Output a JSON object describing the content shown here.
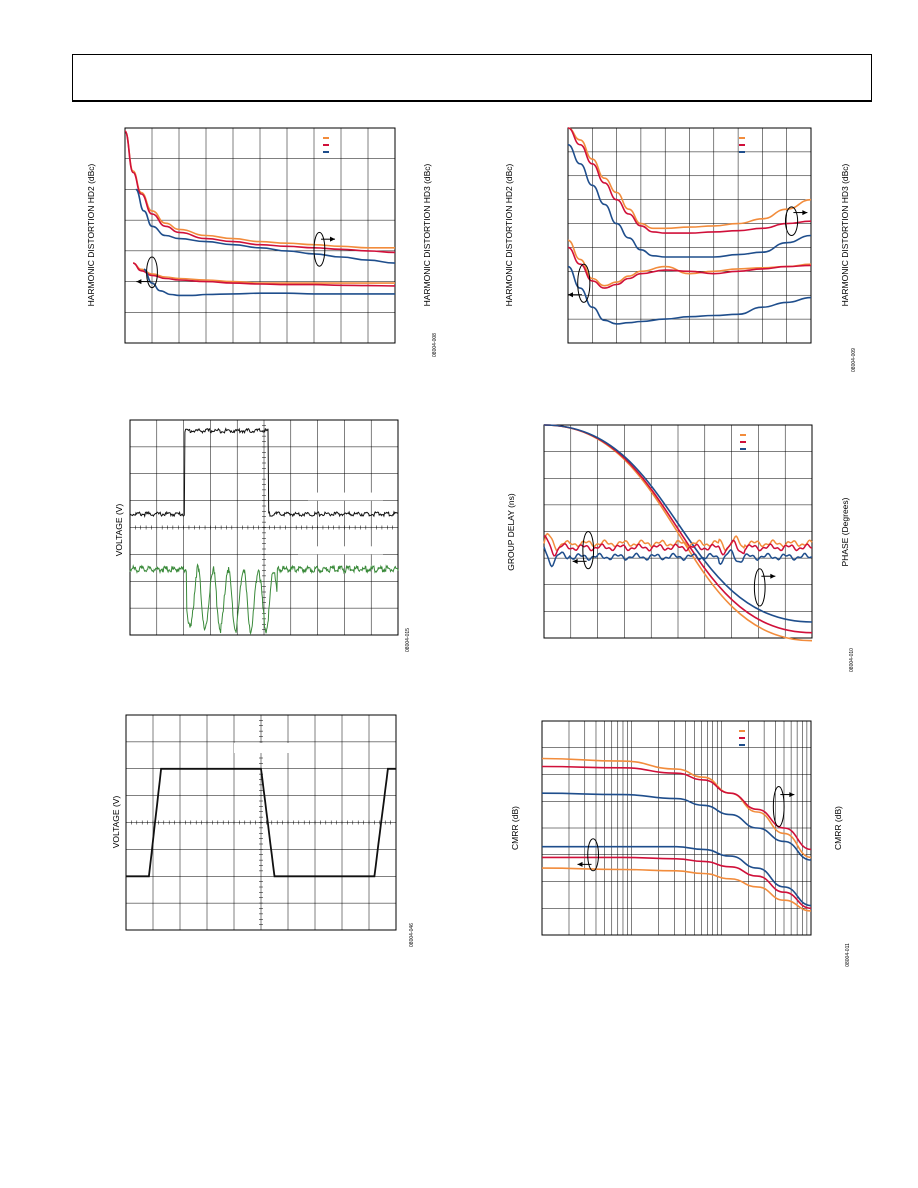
{
  "page": {
    "header_title": ""
  },
  "colors": {
    "orange": "#F28C3C",
    "red": "#D0103A",
    "blue": "#1F4E8C",
    "black": "#111111",
    "green": "#3A8A3A",
    "grid": "#000000"
  },
  "chart_data": [
    {
      "id": "c1",
      "type": "line",
      "ylabel_left": "HARMONIC DISTORTION HD2 (dBc)",
      "ylabel_right": "HARMONIC DISTORTION HD3 (dBc)",
      "fig_id": "08004-008",
      "grid": {
        "cols": 10,
        "rows": 7
      },
      "legend": [
        "",
        "",
        ""
      ],
      "series": [
        {
          "color": "orange",
          "x": [
            0,
            0.3,
            0.6,
            1,
            1.5,
            2,
            3,
            4,
            5,
            6,
            7,
            8,
            9,
            10
          ],
          "y": [
            6.9,
            5.6,
            4.9,
            4.3,
            3.9,
            3.7,
            3.5,
            3.4,
            3.3,
            3.25,
            3.2,
            3.15,
            3.1,
            3.1
          ]
        },
        {
          "color": "red",
          "x": [
            0,
            0.3,
            0.6,
            1,
            1.5,
            2,
            3,
            4,
            5,
            6,
            7,
            8,
            9,
            10
          ],
          "y": [
            6.9,
            5.55,
            4.85,
            4.2,
            3.8,
            3.6,
            3.4,
            3.3,
            3.2,
            3.15,
            3.1,
            3.05,
            3.0,
            2.95
          ]
        },
        {
          "color": "blue",
          "x": [
            0.4,
            0.7,
            1,
            1.5,
            2,
            3,
            4,
            5,
            6,
            7,
            8,
            9,
            10
          ],
          "y": [
            5.0,
            4.3,
            3.8,
            3.5,
            3.4,
            3.3,
            3.2,
            3.1,
            3.0,
            2.9,
            2.8,
            2.7,
            2.6
          ]
        },
        {
          "color": "orange",
          "x": [
            0.3,
            0.6,
            1,
            1.5,
            2,
            3,
            4,
            5,
            6,
            7,
            8,
            9,
            10
          ],
          "y": [
            2.6,
            2.4,
            2.25,
            2.15,
            2.1,
            2.05,
            2.0,
            1.95,
            1.95,
            1.95,
            1.95,
            1.95,
            1.95
          ]
        },
        {
          "color": "red",
          "x": [
            0.3,
            0.6,
            1,
            1.5,
            2,
            3,
            4,
            5,
            6,
            7,
            8,
            9,
            10
          ],
          "y": [
            2.6,
            2.35,
            2.2,
            2.1,
            2.05,
            2.0,
            1.95,
            1.92,
            1.9,
            1.9,
            1.88,
            1.87,
            1.86
          ]
        },
        {
          "color": "blue",
          "x": [
            0.7,
            1,
            1.3,
            1.7,
            2,
            2.5,
            3,
            4,
            5,
            6,
            7,
            8,
            9,
            10
          ],
          "y": [
            2.4,
            1.95,
            1.7,
            1.58,
            1.55,
            1.55,
            1.58,
            1.6,
            1.62,
            1.62,
            1.6,
            1.6,
            1.6,
            1.6
          ]
        }
      ],
      "annotations": [
        {
          "type": "ellipse",
          "cx": 7.2,
          "cy": 3.05,
          "rx": 0.2,
          "ry": 0.55,
          "arrow": "right"
        },
        {
          "type": "ellipse",
          "cx": 1.0,
          "cy": 2.3,
          "rx": 0.2,
          "ry": 0.5,
          "arrow": "left"
        }
      ]
    },
    {
      "id": "c2",
      "type": "line",
      "ylabel_left": "HARMONIC DISTORTION HD2 (dBc)",
      "ylabel_right": "HARMONIC DISTORTION HD3 (dBc)",
      "fig_id": "08004-009",
      "grid": {
        "cols": 10,
        "rows": 9
      },
      "legend": [
        "",
        "",
        ""
      ],
      "series": [
        {
          "color": "orange",
          "x": [
            0,
            0.5,
            1,
            1.5,
            2,
            2.5,
            3,
            3.5,
            4,
            5,
            6,
            7,
            8,
            9,
            10
          ],
          "y": [
            9.0,
            8.5,
            7.7,
            6.9,
            6.3,
            5.6,
            5.0,
            4.8,
            4.8,
            4.85,
            4.9,
            5.0,
            5.2,
            5.6,
            6.0
          ]
        },
        {
          "color": "red",
          "x": [
            0,
            0.5,
            1,
            1.5,
            2,
            2.5,
            3,
            3.5,
            4,
            5,
            6,
            7,
            8,
            9,
            10
          ],
          "y": [
            9.0,
            8.3,
            7.5,
            6.7,
            6.0,
            5.4,
            4.9,
            4.65,
            4.6,
            4.6,
            4.65,
            4.7,
            4.8,
            5.0,
            5.1
          ]
        },
        {
          "color": "blue",
          "x": [
            0,
            0.5,
            1,
            1.5,
            2,
            2.5,
            3,
            3.5,
            4,
            5,
            6,
            7,
            8,
            9,
            10
          ],
          "y": [
            8.3,
            7.5,
            6.6,
            5.8,
            5.0,
            4.4,
            3.9,
            3.65,
            3.6,
            3.6,
            3.6,
            3.7,
            3.8,
            4.2,
            4.5
          ]
        },
        {
          "color": "orange",
          "x": [
            0,
            0.5,
            1,
            1.5,
            2,
            2.5,
            3,
            4,
            5,
            6,
            7,
            8,
            9,
            10
          ],
          "y": [
            4.3,
            3.5,
            2.7,
            2.4,
            2.55,
            2.8,
            3.0,
            3.2,
            2.9,
            3.0,
            3.1,
            3.15,
            3.2,
            3.3
          ]
        },
        {
          "color": "red",
          "x": [
            0,
            0.5,
            1,
            1.5,
            2,
            2.5,
            3,
            4,
            5,
            6,
            7,
            8,
            9,
            10
          ],
          "y": [
            4.0,
            3.3,
            2.6,
            2.3,
            2.45,
            2.7,
            2.9,
            3.05,
            3.0,
            2.9,
            3.0,
            3.1,
            3.2,
            3.25
          ]
        },
        {
          "color": "blue",
          "x": [
            0,
            0.5,
            1,
            1.5,
            2,
            2.5,
            3,
            4,
            5,
            6,
            7,
            8,
            9,
            10
          ],
          "y": [
            3.2,
            2.3,
            1.5,
            0.95,
            0.8,
            0.85,
            0.9,
            1.0,
            1.1,
            1.15,
            1.2,
            1.5,
            1.7,
            1.9
          ]
        }
      ],
      "annotations": [
        {
          "type": "ellipse",
          "cx": 9.2,
          "cy": 5.1,
          "rx": 0.25,
          "ry": 0.6,
          "arrow": "right"
        },
        {
          "type": "ellipse",
          "cx": 0.65,
          "cy": 2.5,
          "rx": 0.25,
          "ry": 0.8,
          "arrow": "left"
        }
      ]
    },
    {
      "id": "c3",
      "type": "line",
      "ylabel_left": "VOLTAGE (V)",
      "fig_id": "08004-015",
      "grid": {
        "cols": 10,
        "rows": 8
      },
      "signals": [
        {
          "color": "black",
          "kind": "pulse",
          "low": 4.5,
          "high": 7.6,
          "rise": 2.05,
          "fall": 5.15,
          "noise": 0.04
        },
        {
          "color": "green",
          "kind": "burst",
          "base": 2.45,
          "start": 2.1,
          "end": 5.5,
          "bottom": 0.2,
          "noise": 0.06
        }
      ],
      "labels": [
        "",
        ""
      ]
    },
    {
      "id": "c4",
      "type": "line",
      "ylabel_left": "GROUP DELAY (ns)",
      "ylabel_right": "PHASE (Degrees)",
      "fig_id": "08004-010",
      "grid": {
        "cols": 10,
        "rows": 8
      },
      "legend": [
        "",
        "",
        ""
      ],
      "series": [
        {
          "color": "orange",
          "x": [
            0,
            10
          ],
          "y": [
            8.0,
            -0.1
          ]
        },
        {
          "color": "red",
          "x": [
            0,
            10
          ],
          "y": [
            8.0,
            0.2
          ]
        },
        {
          "color": "blue",
          "x": [
            0,
            10
          ],
          "y": [
            8.0,
            0.6
          ]
        }
      ],
      "ripple_series": [
        {
          "color": "orange",
          "level": 3.55
        },
        {
          "color": "red",
          "level": 3.4
        },
        {
          "color": "blue",
          "level": 3.05
        }
      ],
      "annotations": [
        {
          "type": "ellipse",
          "cx": 1.65,
          "cy": 3.3,
          "rx": 0.2,
          "ry": 0.7,
          "arrow": "left"
        },
        {
          "type": "ellipse",
          "cx": 8.05,
          "cy": 1.9,
          "rx": 0.2,
          "ry": 0.7,
          "arrow": "right"
        }
      ]
    },
    {
      "id": "c5",
      "type": "line",
      "ylabel_left": "VOLTAGE (V)",
      "fig_id": "08004-046",
      "grid": {
        "cols": 10,
        "rows": 8
      },
      "signals": [
        {
          "color": "black",
          "kind": "square",
          "low": 2.0,
          "high": 6.0,
          "edges": [
            0.85,
            1.3,
            5.0,
            5.5,
            9.2,
            9.7
          ]
        }
      ],
      "labels": [
        ""
      ]
    },
    {
      "id": "c6",
      "type": "line",
      "ylabel_left": "CMRR (dB)",
      "ylabel_right": "CMRR (dB)",
      "fig_id": "08004-011",
      "grid": {
        "cols": 10,
        "rows": 8,
        "logx": true
      },
      "legend": [
        "",
        "",
        ""
      ],
      "series": [
        {
          "color": "orange",
          "x": [
            0,
            3,
            5,
            6,
            7,
            8,
            9,
            10
          ],
          "y": [
            6.6,
            6.5,
            6.2,
            5.9,
            5.3,
            4.6,
            3.8,
            2.9
          ]
        },
        {
          "color": "red",
          "x": [
            0,
            3,
            5,
            6,
            7,
            8,
            9,
            10
          ],
          "y": [
            6.3,
            6.25,
            6.05,
            5.8,
            5.3,
            4.7,
            4.0,
            3.2
          ]
        },
        {
          "color": "blue",
          "x": [
            0,
            3,
            5,
            6,
            7,
            8,
            9,
            10
          ],
          "y": [
            5.3,
            5.25,
            5.1,
            4.85,
            4.5,
            4.0,
            3.5,
            2.8
          ]
        },
        {
          "color": "blue",
          "x": [
            0,
            3,
            5,
            6,
            7,
            8,
            9,
            10
          ],
          "y": [
            3.3,
            3.3,
            3.3,
            3.2,
            2.95,
            2.5,
            1.8,
            1.1
          ]
        },
        {
          "color": "red",
          "x": [
            0,
            3,
            5,
            6,
            7,
            8,
            9,
            10
          ],
          "y": [
            2.9,
            2.9,
            2.85,
            2.75,
            2.55,
            2.2,
            1.6,
            1.0
          ]
        },
        {
          "color": "orange",
          "x": [
            0,
            3,
            5,
            6,
            7,
            8,
            9,
            10
          ],
          "y": [
            2.5,
            2.45,
            2.4,
            2.3,
            2.1,
            1.8,
            1.3,
            0.9
          ]
        }
      ],
      "annotations": [
        {
          "type": "ellipse",
          "cx": 8.8,
          "cy": 4.8,
          "rx": 0.2,
          "ry": 0.75,
          "arrow": "right"
        },
        {
          "type": "ellipse",
          "cx": 1.9,
          "cy": 3.0,
          "rx": 0.2,
          "ry": 0.6,
          "arrow": "left"
        }
      ]
    }
  ]
}
